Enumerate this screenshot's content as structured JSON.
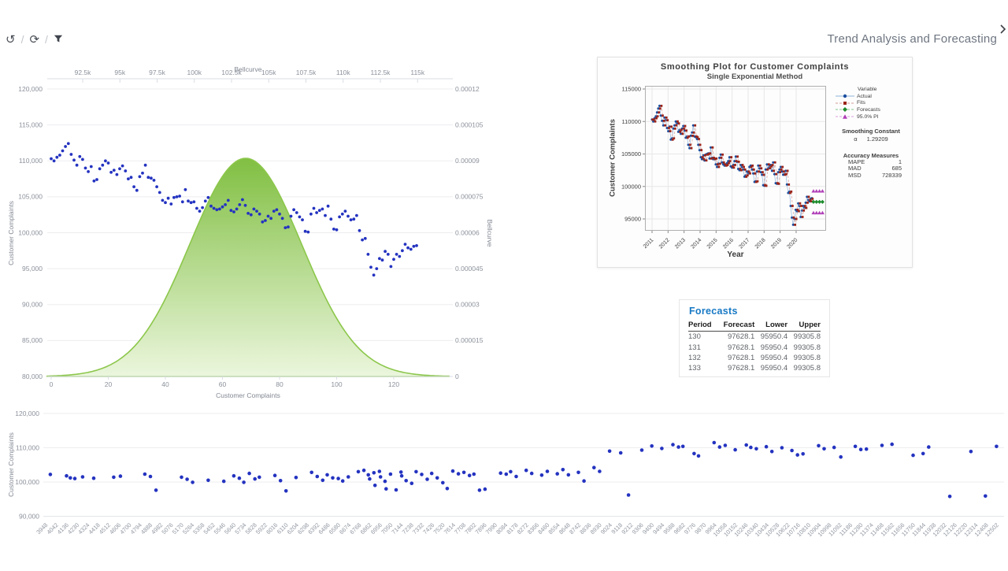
{
  "toolbar": {
    "separator": "/",
    "undo_icon": "↺",
    "refresh_icon": "⟳",
    "filter_icon": "funnel"
  },
  "header": {
    "title": "Trend Analysis and Forecasting"
  },
  "colors": {
    "scatter_point": "#2433c0",
    "bell_top": "#7cbd3b",
    "bell_bottom": "#ebf6dc",
    "bell_stroke": "#88c544",
    "grid": "#ededf1",
    "axis_line": "#d9dce3",
    "tick_text": "#8b919b",
    "table_title": "#1779c4",
    "actual_marker": "#1d4f9f",
    "actual_line": "#8fb4dc",
    "fits_marker": "#9c2418",
    "fits_line": "#d49d97",
    "forecast_marker": "#1d8c2c",
    "pi_marker": "#b13fb8"
  },
  "chart_data": [
    {
      "id": "bellcurve_overlay",
      "type": "scatter+area",
      "top_axis": {
        "title": "Bellcurve",
        "ticks": [
          "92.5k",
          "95k",
          "97.5k",
          "100k",
          "102.5k",
          "105k",
          "107.5k",
          "110k",
          "112.5k",
          "115k"
        ]
      },
      "bottom_axis": {
        "title": "Customer Complaints",
        "ticks": [
          "0",
          "20",
          "40",
          "60",
          "80",
          "100",
          "120"
        ]
      },
      "left_axis": {
        "title": "Customer Complaints",
        "ticks": [
          "120,000",
          "115,000",
          "110,000",
          "105,000",
          "100,000",
          "95,000",
          "90,000",
          "85,000",
          "80,000"
        ],
        "range": [
          80000,
          120000
        ]
      },
      "right_axis": {
        "title": "Bellcurve",
        "ticks": [
          "0.00012",
          "0.000105",
          "0.00009",
          "0.000075",
          "0.00006",
          "0.000045",
          "0.00003",
          "0.000015",
          "0"
        ],
        "range": [
          0,
          0.00012
        ]
      },
      "bell": {
        "mean": 103400,
        "sd": 3760,
        "peak": 9.1e-05
      },
      "series_y_thousands": [
        110.3,
        110.0,
        110.5,
        110.8,
        111.4,
        112.0,
        112.4,
        110.9,
        110.1,
        109.4,
        110.6,
        110.2,
        109.0,
        108.5,
        109.2,
        107.2,
        107.4,
        108.9,
        109.4,
        110.0,
        109.7,
        108.4,
        108.7,
        108.1,
        108.9,
        109.3,
        108.6,
        107.5,
        107.7,
        106.4,
        105.9,
        107.8,
        108.3,
        109.4,
        107.7,
        107.6,
        107.3,
        106.4,
        105.6,
        104.5,
        104.2,
        104.8,
        104.0,
        104.9,
        105.0,
        105.1,
        104.3,
        106.0,
        104.4,
        104.2,
        104.3,
        103.4,
        103.0,
        103.5,
        104.4,
        104.9,
        103.7,
        103.4,
        103.2,
        103.3,
        103.6,
        103.9,
        104.5,
        103.1,
        102.9,
        103.3,
        103.9,
        104.6,
        103.8,
        102.7,
        102.5,
        103.3,
        103.0,
        102.6,
        101.5,
        101.7,
        102.3,
        102.0,
        103.0,
        103.2,
        102.6,
        102.0,
        100.7,
        100.8,
        102.3,
        103.2,
        102.8,
        102.2,
        101.8,
        100.2,
        100.1,
        102.6,
        103.4,
        102.8,
        103.1,
        103.3,
        102.4,
        103.7,
        101.9,
        100.5,
        100.4,
        102.2,
        102.6,
        103.0,
        102.3,
        101.8,
        101.9,
        102.4,
        100.3,
        99.0,
        99.2,
        97.0,
        95.2,
        94.1,
        95.0,
        96.4,
        96.2,
        97.4,
        97.0,
        95.3,
        96.3,
        97.0,
        96.7,
        97.5,
        98.4,
        97.9,
        97.7,
        98.1,
        98.2
      ]
    },
    {
      "id": "smoothing",
      "type": "line",
      "title": "Smoothing Plot for Customer Complaints",
      "subtitle": "Single Exponential Method",
      "xlabel": "Year",
      "ylabel": "Customer Complaints",
      "series_ref": "bellcurve_overlay",
      "x_ticks": [
        "2011",
        "2012",
        "2013",
        "2014",
        "2015",
        "2016",
        "2017",
        "2018",
        "2019",
        "2020"
      ],
      "y_ticks": [
        "115000",
        "110000",
        "105000",
        "100000",
        "95000"
      ],
      "legend": {
        "header": "Variable",
        "items": [
          {
            "label": "Actual",
            "marker": "circle",
            "color": "#1d4f9f",
            "line": "#8fb4dc",
            "dash": false
          },
          {
            "label": "Fits",
            "marker": "square",
            "color": "#9c2418",
            "line": "#d49d97",
            "dash": true
          },
          {
            "label": "Forecasts",
            "marker": "diamond",
            "color": "#1d8c2c",
            "line": "#7fc98a",
            "dash": true
          },
          {
            "label": "95.0% PI",
            "marker": "triangle",
            "color": "#b13fb8",
            "line": "#d9a0dd",
            "dash": true
          }
        ]
      },
      "smoothing_constant": {
        "title": "Smoothing Constant",
        "alpha_symbol": "α",
        "alpha": "1.29209"
      },
      "accuracy": {
        "title": "Accuracy Measures",
        "rows": [
          [
            "MAPE",
            "1"
          ],
          [
            "MAD",
            "685"
          ],
          [
            "MSD",
            "728339"
          ]
        ]
      },
      "forecast": {
        "value": 97628.1,
        "lower": 95950.4,
        "upper": 99305.8,
        "n": 4
      }
    },
    {
      "id": "forecasts_table",
      "type": "table",
      "title": "Forecasts",
      "columns": [
        "Period",
        "Forecast",
        "Lower",
        "Upper"
      ],
      "rows": [
        [
          "130",
          "97628.1",
          "95950.4",
          "99305.8"
        ],
        [
          "131",
          "97628.1",
          "95950.4",
          "99305.8"
        ],
        [
          "132",
          "97628.1",
          "95950.4",
          "99305.8"
        ],
        [
          "133",
          "97628.1",
          "95950.4",
          "99305.8"
        ]
      ]
    },
    {
      "id": "bottom_scatter",
      "type": "scatter",
      "ylabel": "Customer Complaints",
      "y_ticks": [
        "120,000",
        "110,000",
        "100,000",
        "90,000"
      ],
      "x_tick_values": [
        3948,
        4042,
        4136,
        4230,
        4324,
        4418,
        4512,
        4606,
        4700,
        4794,
        4888,
        4982,
        5076,
        5170,
        5264,
        5358,
        5452,
        5546,
        5640,
        5734,
        5828,
        5922,
        6016,
        6110,
        6204,
        6298,
        6392,
        6486,
        6580,
        6674,
        6768,
        6862,
        6956,
        7050,
        7144,
        7238,
        7332,
        7426,
        7520,
        7614,
        7708,
        7802,
        7896,
        7990,
        8084,
        8178,
        8272,
        8366,
        8460,
        8554,
        8648,
        8742,
        8836,
        8930,
        9024,
        9118,
        9212,
        9306,
        9400,
        9494,
        9588,
        9682,
        9776,
        9870,
        9964,
        10058,
        10152,
        10246,
        10340,
        10434,
        10528,
        10622,
        10716,
        10810,
        10904,
        10998,
        11092,
        11186,
        11280,
        11374,
        11468,
        11562,
        11656,
        11750,
        11844,
        11938,
        12032,
        12126,
        12220,
        12314,
        12408,
        12502
      ],
      "points": [
        [
          3990,
          102.2
        ],
        [
          4136,
          101.8
        ],
        [
          4170,
          101.2
        ],
        [
          4210,
          101.0
        ],
        [
          4280,
          101.5
        ],
        [
          4380,
          101.1
        ],
        [
          4560,
          101.4
        ],
        [
          4620,
          101.7
        ],
        [
          4840,
          102.3
        ],
        [
          4890,
          101.6
        ],
        [
          4940,
          97.6
        ],
        [
          5170,
          101.4
        ],
        [
          5220,
          100.8
        ],
        [
          5270,
          99.9
        ],
        [
          5410,
          100.5
        ],
        [
          5550,
          100.2
        ],
        [
          5640,
          101.8
        ],
        [
          5690,
          101.1
        ],
        [
          5730,
          99.9
        ],
        [
          5780,
          102.5
        ],
        [
          5830,
          100.9
        ],
        [
          5870,
          101.4
        ],
        [
          6010,
          101.9
        ],
        [
          6060,
          100.4
        ],
        [
          6110,
          97.4
        ],
        [
          6200,
          101.3
        ],
        [
          6340,
          102.8
        ],
        [
          6390,
          101.6
        ],
        [
          6440,
          100.5
        ],
        [
          6480,
          102.1
        ],
        [
          6530,
          101.2
        ],
        [
          6580,
          101.0
        ],
        [
          6620,
          100.3
        ],
        [
          6670,
          101.5
        ],
        [
          6760,
          103.0
        ],
        [
          6810,
          103.4
        ],
        [
          6850,
          102.1
        ],
        [
          6862,
          100.9
        ],
        [
          6900,
          102.7
        ],
        [
          6910,
          99.0
        ],
        [
          6950,
          103.1
        ],
        [
          6960,
          101.5
        ],
        [
          7000,
          100.2
        ],
        [
          7010,
          98.0
        ],
        [
          7050,
          102.3
        ],
        [
          7100,
          97.7
        ],
        [
          7144,
          102.9
        ],
        [
          7150,
          101.8
        ],
        [
          7190,
          100.4
        ],
        [
          7240,
          99.6
        ],
        [
          7280,
          103.0
        ],
        [
          7330,
          102.2
        ],
        [
          7380,
          100.8
        ],
        [
          7420,
          102.5
        ],
        [
          7470,
          101.2
        ],
        [
          7520,
          99.8
        ],
        [
          7560,
          98.1
        ],
        [
          7610,
          103.2
        ],
        [
          7660,
          102.4
        ],
        [
          7710,
          102.8
        ],
        [
          7760,
          101.9
        ],
        [
          7800,
          102.3
        ],
        [
          7850,
          97.6
        ],
        [
          7900,
          97.9
        ],
        [
          8040,
          102.6
        ],
        [
          8090,
          102.3
        ],
        [
          8130,
          103.0
        ],
        [
          8180,
          101.6
        ],
        [
          8270,
          103.4
        ],
        [
          8320,
          102.5
        ],
        [
          8410,
          102.0
        ],
        [
          8460,
          103.1
        ],
        [
          8550,
          102.4
        ],
        [
          8600,
          103.6
        ],
        [
          8650,
          102.1
        ],
        [
          8740,
          102.8
        ],
        [
          8790,
          100.3
        ],
        [
          8880,
          104.2
        ],
        [
          8930,
          103.1
        ],
        [
          9020,
          109.0
        ],
        [
          9120,
          108.5
        ],
        [
          9190,
          96.2
        ],
        [
          9310,
          109.3
        ],
        [
          9400,
          110.5
        ],
        [
          9490,
          109.8
        ],
        [
          9590,
          110.9
        ],
        [
          9640,
          110.2
        ],
        [
          9680,
          110.4
        ],
        [
          9780,
          108.3
        ],
        [
          9820,
          107.6
        ],
        [
          9960,
          111.5
        ],
        [
          10010,
          110.2
        ],
        [
          10060,
          110.7
        ],
        [
          10150,
          109.4
        ],
        [
          10250,
          110.8
        ],
        [
          10290,
          110.1
        ],
        [
          10340,
          109.7
        ],
        [
          10430,
          110.3
        ],
        [
          10480,
          108.9
        ],
        [
          10570,
          110.0
        ],
        [
          10660,
          109.2
        ],
        [
          10710,
          107.9
        ],
        [
          10760,
          108.2
        ],
        [
          10900,
          110.6
        ],
        [
          10950,
          109.7
        ],
        [
          11040,
          110.1
        ],
        [
          11100,
          107.3
        ],
        [
          11230,
          110.4
        ],
        [
          11280,
          109.5
        ],
        [
          11330,
          109.6
        ],
        [
          11470,
          110.7
        ],
        [
          11560,
          111.0
        ],
        [
          11750,
          107.8
        ],
        [
          11840,
          108.3
        ],
        [
          11890,
          110.2
        ],
        [
          12080,
          95.8
        ],
        [
          12270,
          108.9
        ],
        [
          12400,
          95.9
        ],
        [
          12500,
          110.4
        ]
      ]
    }
  ]
}
